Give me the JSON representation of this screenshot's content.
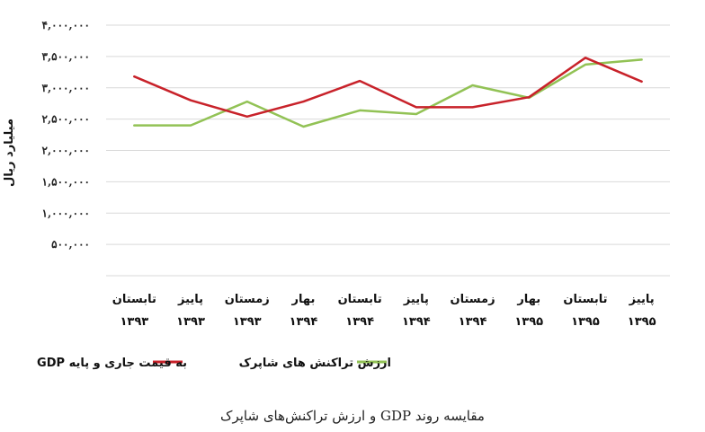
{
  "chart_data": {
    "type": "line",
    "categories": [
      [
        "تابستان",
        "۱۳۹۳"
      ],
      [
        "پاییز",
        "۱۳۹۳"
      ],
      [
        "زمستان",
        "۱۳۹۳"
      ],
      [
        "بهار",
        "۱۳۹۴"
      ],
      [
        "تابستان",
        "۱۳۹۴"
      ],
      [
        "پاییز",
        "۱۳۹۴"
      ],
      [
        "زمستان",
        "۱۳۹۴"
      ],
      [
        "بهار",
        "۱۳۹۵"
      ],
      [
        "تابستان",
        "۱۳۹۵"
      ],
      [
        "پاییز",
        "۱۳۹۵"
      ]
    ],
    "series": [
      {
        "name": "به قیمت جاری و پایه GDP",
        "color": "#c8222a",
        "values": [
          3180000,
          2800000,
          2540000,
          2780000,
          3110000,
          2690000,
          2690000,
          2850000,
          3480000,
          3100000
        ]
      },
      {
        "name": "ارزش تراکنش های شاپرک",
        "color": "#92c255",
        "values": [
          2400000,
          2400000,
          2780000,
          2380000,
          2640000,
          2580000,
          3040000,
          2840000,
          3370000,
          3450000
        ]
      }
    ],
    "yticks": [
      "",
      "۵۰۰,۰۰۰",
      "۱,۰۰۰,۰۰۰",
      "۱,۵۰۰,۰۰۰",
      "۲,۰۰۰,۰۰۰",
      "۲,۵۰۰,۰۰۰",
      "۳,۰۰۰,۰۰۰",
      "۳,۵۰۰,۰۰۰",
      "۴,۰۰۰,۰۰۰"
    ],
    "ylim": [
      0,
      4000000
    ],
    "ylabel": "میلیارد ریال",
    "xlabel": "",
    "grid": true,
    "legend_position": "bottom"
  },
  "caption": "مقایسه روند GDP و ارزش تراکنش‌های شاپرک"
}
